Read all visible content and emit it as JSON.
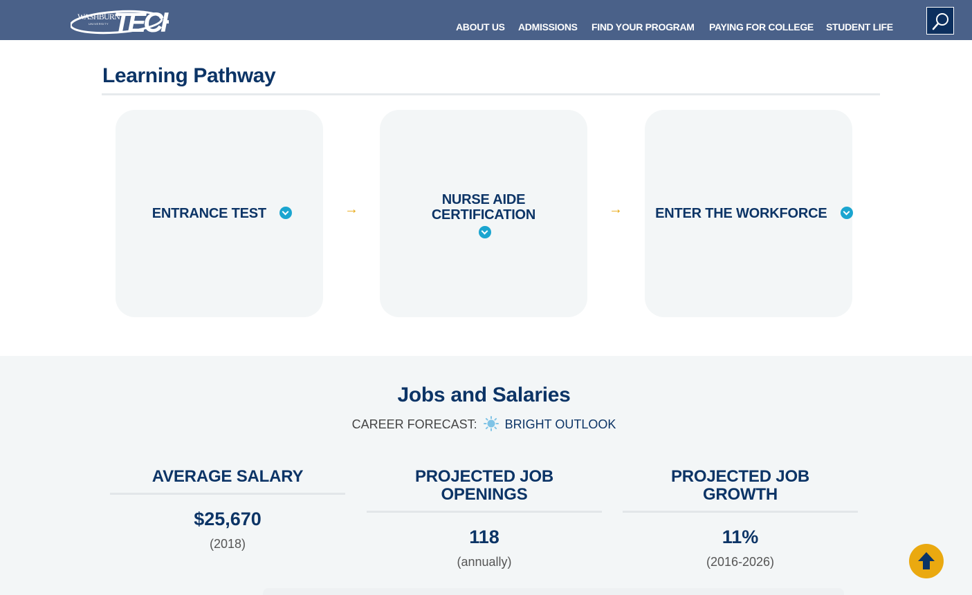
{
  "header": {
    "logo_top": "WASHBURN",
    "logo_sub": "UNIVERSITY",
    "logo_main": "TECH",
    "nav": [
      "ABOUT US",
      "ADMISSIONS",
      "FIND YOUR PROGRAM",
      "PAYING FOR COLLEGE",
      "STUDENT LIFE"
    ],
    "search_icon": "search-icon"
  },
  "learning_pathway": {
    "title": "Learning Pathway",
    "steps": [
      {
        "label": "ENTRANCE TEST",
        "icon": "chevron-down-icon"
      },
      {
        "label": "NURSE AIDE CERTIFICATION",
        "icon": "chevron-down-icon"
      },
      {
        "label": "ENTER THE WORKFORCE",
        "icon": "chevron-down-icon"
      }
    ],
    "arrow_icon": "arrow-right-icon"
  },
  "jobs": {
    "title": "Jobs and Salaries",
    "forecast_label": "CAREER FORECAST:",
    "forecast_icon": "sun-icon",
    "forecast_value": "BRIGHT OUTLOOK",
    "stats": [
      {
        "heading": "AVERAGE SALARY",
        "value": "$25,670",
        "note": "(2018)"
      },
      {
        "heading": "PROJECTED JOB OPENINGS",
        "value": "118",
        "note": "(annually)"
      },
      {
        "heading": "PROJECTED JOB GROWTH",
        "value": "11%",
        "note": "(2016-2026)"
      }
    ]
  },
  "back_to_top_icon": "arrow-up-icon",
  "colors": {
    "header_bg": "#4a6189",
    "navy": "#0c3466",
    "accent_blue": "#1aa5d0",
    "gold": "#eaa910",
    "panel_bg": "#f3f6f7"
  }
}
